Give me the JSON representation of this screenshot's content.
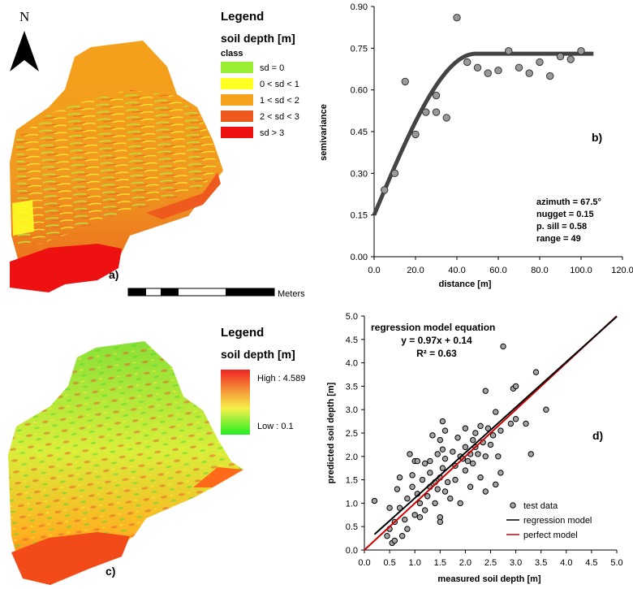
{
  "panel_a": {
    "label": "a)",
    "north": "N",
    "legend": {
      "title": "Legend",
      "subtitle": "soil depth [m]",
      "class_label": "class",
      "classes": [
        {
          "label": "sd = 0",
          "color": "#99ee33"
        },
        {
          "label": "0 < sd < 1",
          "color": "#ffff22"
        },
        {
          "label": "1 < sd < 2",
          "color": "#f6a21c"
        },
        {
          "label": "2 < sd < 3",
          "color": "#ee5a1d"
        },
        {
          "label": "sd > 3",
          "color": "#ee1111"
        }
      ]
    },
    "scalebar_label": "Meters"
  },
  "panel_c": {
    "label": "c)",
    "legend": {
      "title": "Legend",
      "subtitle": "soil depth [m]",
      "high": "High : 4.589",
      "low": "Low : 0.1"
    }
  },
  "chart_data": [
    {
      "id": "b",
      "type": "scatter",
      "panel_label": "b)",
      "xlabel": "distance [m]",
      "ylabel": "semivariance",
      "xlim": [
        0,
        120
      ],
      "ylim": [
        0,
        0.9
      ],
      "xticks": [
        "0.0",
        "20.0",
        "40.0",
        "60.0",
        "80.0",
        "100.0",
        "120.0"
      ],
      "yticks": [
        "0.00",
        "0.15",
        "0.30",
        "0.45",
        "0.60",
        "0.75",
        "0.90"
      ],
      "points": [
        [
          5,
          0.24
        ],
        [
          10,
          0.3
        ],
        [
          15,
          0.63
        ],
        [
          20,
          0.44
        ],
        [
          25,
          0.52
        ],
        [
          30,
          0.52
        ],
        [
          30,
          0.58
        ],
        [
          35,
          0.5
        ],
        [
          40,
          0.86
        ],
        [
          45,
          0.7
        ],
        [
          50,
          0.68
        ],
        [
          55,
          0.66
        ],
        [
          60,
          0.67
        ],
        [
          65,
          0.74
        ],
        [
          70,
          0.68
        ],
        [
          75,
          0.66
        ],
        [
          80,
          0.7
        ],
        [
          85,
          0.65
        ],
        [
          90,
          0.72
        ],
        [
          95,
          0.71
        ],
        [
          100,
          0.74
        ]
      ],
      "model": {
        "nugget": 0.15,
        "sill": 0.58,
        "range": 49,
        "x_end": 106
      },
      "annotations": [
        "azimuth = 67.5°",
        "nugget = 0.15",
        "p. sill = 0.58",
        "range = 49"
      ]
    },
    {
      "id": "d",
      "type": "scatter",
      "panel_label": "d)",
      "xlabel": "measured soil depth [m]",
      "ylabel": "predicted soil depth [m]",
      "xlim": [
        0,
        5
      ],
      "ylim": [
        0,
        5
      ],
      "xticks": [
        "0.0",
        "0.5",
        "1.0",
        "1.5",
        "2.0",
        "2.5",
        "3.0",
        "3.5",
        "4.0",
        "4.5",
        "5.0"
      ],
      "yticks": [
        "0.0",
        "0.5",
        "1.0",
        "1.5",
        "2.0",
        "2.5",
        "3.0",
        "3.5",
        "4.0",
        "4.5",
        "5.0"
      ],
      "equation_title": "regression model equation",
      "equation": "y = 0.97x + 0.14",
      "r2": "R² = 0.63",
      "regression": {
        "slope": 0.97,
        "intercept": 0.14
      },
      "legend": [
        "test data",
        "regression model",
        "perfect model"
      ],
      "colors": {
        "regression": "#000000",
        "perfect": "#cc0000",
        "points": "#a6a6a6"
      },
      "points": [
        [
          0.2,
          1.05
        ],
        [
          0.45,
          0.3
        ],
        [
          0.5,
          0.9
        ],
        [
          0.5,
          0.45
        ],
        [
          0.55,
          0.15
        ],
        [
          0.6,
          0.2
        ],
        [
          0.6,
          0.6
        ],
        [
          0.65,
          1.3
        ],
        [
          0.7,
          1.55
        ],
        [
          0.7,
          0.9
        ],
        [
          0.75,
          0.3
        ],
        [
          0.8,
          0.65
        ],
        [
          0.85,
          1.1
        ],
        [
          0.85,
          0.45
        ],
        [
          0.9,
          2.05
        ],
        [
          0.95,
          1.6
        ],
        [
          1.0,
          1.9
        ],
        [
          1.0,
          0.75
        ],
        [
          1.05,
          1.2
        ],
        [
          1.1,
          1.0
        ],
        [
          1.1,
          0.7
        ],
        [
          1.15,
          1.5
        ],
        [
          1.2,
          0.85
        ],
        [
          1.2,
          1.85
        ],
        [
          1.25,
          1.15
        ],
        [
          1.3,
          1.35
        ],
        [
          1.3,
          1.65
        ],
        [
          1.3,
          1.9
        ],
        [
          1.35,
          2.45
        ],
        [
          1.4,
          1.0
        ],
        [
          1.4,
          1.45
        ],
        [
          1.45,
          2.05
        ],
        [
          1.45,
          1.3
        ],
        [
          1.5,
          1.55
        ],
        [
          1.5,
          2.35
        ],
        [
          1.5,
          0.7
        ],
        [
          1.5,
          0.6
        ],
        [
          1.55,
          1.75
        ],
        [
          1.55,
          2.75
        ],
        [
          1.6,
          1.25
        ],
        [
          1.6,
          1.95
        ],
        [
          1.6,
          2.55
        ],
        [
          1.65,
          1.45
        ],
        [
          1.7,
          1.1
        ],
        [
          1.75,
          2.1
        ],
        [
          1.8,
          1.8
        ],
        [
          1.8,
          1.5
        ],
        [
          1.85,
          2.4
        ],
        [
          1.9,
          2.0
        ],
        [
          1.9,
          1.0
        ],
        [
          1.95,
          1.95
        ],
        [
          2.0,
          2.2
        ],
        [
          2.0,
          1.7
        ],
        [
          2.0,
          2.6
        ],
        [
          2.05,
          1.9
        ],
        [
          2.1,
          2.05
        ],
        [
          2.1,
          1.35
        ],
        [
          2.15,
          2.35
        ],
        [
          2.15,
          1.85
        ],
        [
          2.2,
          2.5
        ],
        [
          2.2,
          2.2
        ],
        [
          2.25,
          2.05
        ],
        [
          2.3,
          2.65
        ],
        [
          2.3,
          1.55
        ],
        [
          2.35,
          2.3
        ],
        [
          2.4,
          2.0
        ],
        [
          2.4,
          1.25
        ],
        [
          2.45,
          2.6
        ],
        [
          2.5,
          2.25
        ],
        [
          2.55,
          2.45
        ],
        [
          2.6,
          1.4
        ],
        [
          2.6,
          2.95
        ],
        [
          2.65,
          2.0
        ],
        [
          2.7,
          1.65
        ],
        [
          2.7,
          2.55
        ],
        [
          2.75,
          4.35
        ],
        [
          2.9,
          2.7
        ],
        [
          2.95,
          3.45
        ],
        [
          3.0,
          3.5
        ],
        [
          3.0,
          2.8
        ],
        [
          3.2,
          2.7
        ],
        [
          3.3,
          2.05
        ],
        [
          3.4,
          3.8
        ],
        [
          3.6,
          3.0
        ],
        [
          2.4,
          3.4
        ],
        [
          1.55,
          2.15
        ],
        [
          1.05,
          1.9
        ],
        [
          0.95,
          1.35
        ]
      ]
    }
  ]
}
